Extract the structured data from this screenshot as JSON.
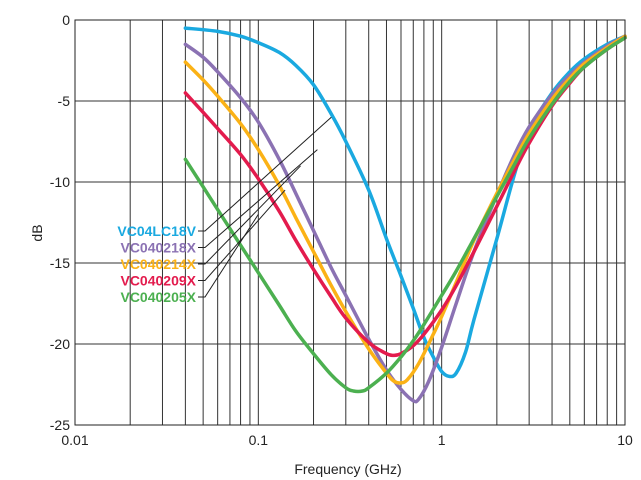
{
  "chart_data": {
    "type": "line",
    "xlabel": "Frequency (GHz)",
    "ylabel": "dB",
    "xscale": "log",
    "xlim": [
      0.01,
      10
    ],
    "ylim": [
      -25,
      0
    ],
    "grid": true,
    "legend_placement": "left, with leader lines to curves",
    "x_ticks": [
      {
        "value": 0.01,
        "label": "0.01"
      },
      {
        "value": 0.1,
        "label": "0.1"
      },
      {
        "value": 1,
        "label": "1"
      },
      {
        "value": 10,
        "label": "10"
      }
    ],
    "y_ticks": [
      {
        "value": 0,
        "label": "0"
      },
      {
        "value": -5,
        "label": "-5"
      },
      {
        "value": -10,
        "label": "-10"
      },
      {
        "value": -15,
        "label": "-15"
      },
      {
        "value": -20,
        "label": "-20"
      },
      {
        "value": -25,
        "label": "-25"
      }
    ],
    "series": [
      {
        "name": "VC04LC18V",
        "color": "#1aa9e0",
        "label_target": {
          "x": 0.25,
          "y": -6
        },
        "points": [
          [
            0.04,
            -0.5
          ],
          [
            0.06,
            -0.7
          ],
          [
            0.08,
            -1.0
          ],
          [
            0.1,
            -1.4
          ],
          [
            0.13,
            -2.0
          ],
          [
            0.16,
            -2.8
          ],
          [
            0.2,
            -4.0
          ],
          [
            0.25,
            -5.8
          ],
          [
            0.3,
            -7.5
          ],
          [
            0.4,
            -10.5
          ],
          [
            0.5,
            -13.5
          ],
          [
            0.6,
            -15.8
          ],
          [
            0.7,
            -17.8
          ],
          [
            0.8,
            -19.6
          ],
          [
            0.9,
            -20.8
          ],
          [
            1.0,
            -21.7
          ],
          [
            1.1,
            -22.0
          ],
          [
            1.2,
            -21.8
          ],
          [
            1.35,
            -20.5
          ],
          [
            1.5,
            -18.5
          ],
          [
            2,
            -13.5
          ],
          [
            2.5,
            -9.5
          ],
          [
            3,
            -6.8
          ],
          [
            4,
            -4.5
          ],
          [
            5,
            -3.2
          ],
          [
            6,
            -2.4
          ],
          [
            8,
            -1.5
          ],
          [
            10,
            -1.0
          ]
        ]
      },
      {
        "name": "VC040218X",
        "color": "#8b72b3",
        "label_target": {
          "x": 0.21,
          "y": -8
        },
        "points": [
          [
            0.04,
            -1.5
          ],
          [
            0.05,
            -2.3
          ],
          [
            0.06,
            -3.2
          ],
          [
            0.08,
            -4.8
          ],
          [
            0.1,
            -6.3
          ],
          [
            0.13,
            -8.6
          ],
          [
            0.16,
            -10.7
          ],
          [
            0.2,
            -13.0
          ],
          [
            0.25,
            -15.3
          ],
          [
            0.3,
            -17.0
          ],
          [
            0.4,
            -19.7
          ],
          [
            0.5,
            -21.6
          ],
          [
            0.6,
            -22.8
          ],
          [
            0.7,
            -23.5
          ],
          [
            0.75,
            -23.4
          ],
          [
            0.85,
            -22.3
          ],
          [
            1.0,
            -20.2
          ],
          [
            1.2,
            -17.5
          ],
          [
            1.5,
            -14.3
          ],
          [
            2,
            -10.8
          ],
          [
            2.5,
            -8.3
          ],
          [
            3,
            -6.6
          ],
          [
            4,
            -4.6
          ],
          [
            5,
            -3.4
          ],
          [
            6,
            -2.6
          ],
          [
            8,
            -1.6
          ],
          [
            10,
            -1.0
          ]
        ]
      },
      {
        "name": "VC040214X",
        "color": "#fbb216",
        "label_target": {
          "x": 0.17,
          "y": -9
        },
        "points": [
          [
            0.04,
            -2.6
          ],
          [
            0.05,
            -3.7
          ],
          [
            0.06,
            -4.7
          ],
          [
            0.08,
            -6.4
          ],
          [
            0.1,
            -8.0
          ],
          [
            0.13,
            -10.2
          ],
          [
            0.16,
            -12.2
          ],
          [
            0.2,
            -14.3
          ],
          [
            0.25,
            -16.4
          ],
          [
            0.3,
            -18.0
          ],
          [
            0.4,
            -20.3
          ],
          [
            0.5,
            -21.8
          ],
          [
            0.55,
            -22.3
          ],
          [
            0.6,
            -22.4
          ],
          [
            0.65,
            -22.2
          ],
          [
            0.75,
            -21.2
          ],
          [
            0.9,
            -19.4
          ],
          [
            1.0,
            -18.3
          ],
          [
            1.2,
            -16.2
          ],
          [
            1.5,
            -13.6
          ],
          [
            2,
            -10.7
          ],
          [
            2.5,
            -8.6
          ],
          [
            3,
            -7.0
          ],
          [
            4,
            -4.9
          ],
          [
            5,
            -3.6
          ],
          [
            6,
            -2.7
          ],
          [
            8,
            -1.7
          ],
          [
            10,
            -1.0
          ]
        ]
      },
      {
        "name": "VC040209X",
        "color": "#e31b4d",
        "label_target": {
          "x": 0.14,
          "y": -10.5
        },
        "points": [
          [
            0.04,
            -4.5
          ],
          [
            0.05,
            -5.7
          ],
          [
            0.06,
            -6.7
          ],
          [
            0.08,
            -8.3
          ],
          [
            0.1,
            -9.8
          ],
          [
            0.13,
            -11.8
          ],
          [
            0.16,
            -13.6
          ],
          [
            0.2,
            -15.4
          ],
          [
            0.25,
            -17.1
          ],
          [
            0.3,
            -18.4
          ],
          [
            0.4,
            -19.9
          ],
          [
            0.5,
            -20.6
          ],
          [
            0.55,
            -20.7
          ],
          [
            0.6,
            -20.6
          ],
          [
            0.7,
            -20.1
          ],
          [
            0.8,
            -19.4
          ],
          [
            1.0,
            -17.9
          ],
          [
            1.2,
            -16.4
          ],
          [
            1.5,
            -14.3
          ],
          [
            2,
            -11.5
          ],
          [
            2.5,
            -9.3
          ],
          [
            3,
            -7.6
          ],
          [
            4,
            -5.3
          ],
          [
            5,
            -3.9
          ],
          [
            6,
            -2.9
          ],
          [
            8,
            -1.8
          ],
          [
            10,
            -1.1
          ]
        ]
      },
      {
        "name": "VC040205X",
        "color": "#4cb050",
        "label_target": {
          "x": 0.1,
          "y": -12
        },
        "points": [
          [
            0.04,
            -8.6
          ],
          [
            0.05,
            -10.3
          ],
          [
            0.06,
            -11.7
          ],
          [
            0.08,
            -13.9
          ],
          [
            0.1,
            -15.6
          ],
          [
            0.13,
            -17.6
          ],
          [
            0.16,
            -19.2
          ],
          [
            0.2,
            -20.6
          ],
          [
            0.25,
            -21.9
          ],
          [
            0.3,
            -22.7
          ],
          [
            0.33,
            -22.9
          ],
          [
            0.37,
            -22.9
          ],
          [
            0.4,
            -22.7
          ],
          [
            0.5,
            -21.8
          ],
          [
            0.6,
            -20.8
          ],
          [
            0.7,
            -19.8
          ],
          [
            0.8,
            -18.8
          ],
          [
            1.0,
            -17.0
          ],
          [
            1.2,
            -15.5
          ],
          [
            1.5,
            -13.5
          ],
          [
            2,
            -10.9
          ],
          [
            2.5,
            -8.9
          ],
          [
            3,
            -7.3
          ],
          [
            4,
            -5.2
          ],
          [
            5,
            -3.8
          ],
          [
            6,
            -2.9
          ],
          [
            8,
            -1.8
          ],
          [
            10,
            -1.1
          ]
        ]
      }
    ]
  }
}
